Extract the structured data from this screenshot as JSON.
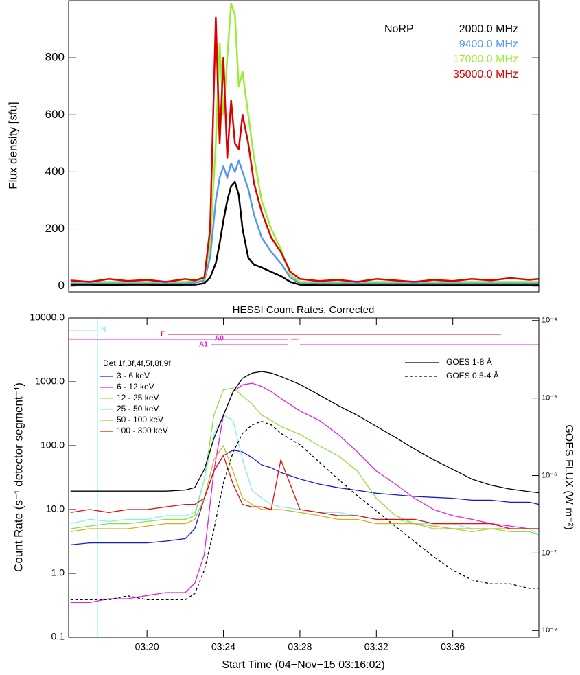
{
  "chart_data": [
    {
      "type": "line",
      "ylabel": "Flux density [sfu]",
      "legend_title": "NoRP",
      "x": [
        16,
        17,
        18,
        19,
        20,
        21,
        22,
        22.5,
        23,
        23.3,
        23.6,
        23.8,
        24.0,
        24.2,
        24.4,
        24.6,
        24.8,
        25.0,
        25.3,
        25.6,
        26.0,
        26.5,
        27,
        27.5,
        28,
        29,
        30,
        31,
        32,
        33,
        34,
        35,
        36,
        37,
        38,
        39,
        40,
        40.5
      ],
      "series": [
        {
          "name": "2000.0 MHz",
          "color": "#000000",
          "values": [
            5,
            5,
            4,
            5,
            5,
            4,
            5,
            5,
            10,
            30,
            80,
            150,
            230,
            300,
            350,
            365,
            320,
            200,
            100,
            75,
            65,
            50,
            35,
            15,
            5,
            3,
            3,
            3,
            3,
            3,
            3,
            3,
            3,
            3,
            3,
            3,
            3,
            3
          ]
        },
        {
          "name": "9400.0 MHz",
          "color": "#5599ee",
          "values": [
            10,
            10,
            10,
            10,
            10,
            10,
            10,
            12,
            20,
            100,
            300,
            380,
            420,
            380,
            430,
            400,
            440,
            400,
            340,
            250,
            170,
            120,
            80,
            30,
            10,
            10,
            10,
            10,
            10,
            10,
            10,
            10,
            10,
            10,
            10,
            10,
            10,
            10
          ]
        },
        {
          "name": "17000.0 MHz",
          "color": "#99ee33",
          "values": [
            15,
            15,
            15,
            15,
            15,
            15,
            15,
            18,
            25,
            150,
            500,
            850,
            600,
            800,
            990,
            950,
            700,
            750,
            600,
            450,
            300,
            200,
            130,
            40,
            15,
            15,
            15,
            15,
            15,
            15,
            15,
            15,
            15,
            15,
            15,
            15,
            15,
            15
          ]
        },
        {
          "name": "35000.0 MHz",
          "color": "#dd0000",
          "values": [
            20,
            15,
            25,
            18,
            22,
            15,
            25,
            20,
            30,
            200,
            940,
            500,
            800,
            450,
            650,
            500,
            480,
            600,
            500,
            360,
            260,
            170,
            120,
            50,
            25,
            18,
            22,
            15,
            25,
            20,
            15,
            22,
            18,
            25,
            20,
            28,
            22,
            25
          ]
        }
      ],
      "xlim": [
        15.9,
        40.5
      ],
      "ylim": [
        -20,
        1000
      ],
      "yticks": [
        0,
        200,
        400,
        600,
        800
      ]
    },
    {
      "type": "line",
      "title": "HESSI Count Rates, Corrected",
      "xlabel": "Start Time (04−Nov−15 03:16:02)",
      "ylabel": "Count Rate (s⁻¹ detector segment⁻¹)",
      "y2label": "GOES FLUX (W m⁻²)",
      "legend_title": "Det 1f,3f,4f,5f,8f,9f",
      "annotations": [
        "N",
        "F",
        "A0",
        "A1"
      ],
      "ylog": true,
      "y2log": true,
      "x": [
        16,
        17,
        18,
        19,
        20,
        21,
        22,
        22.5,
        23,
        23.5,
        24,
        24.5,
        25,
        25.5,
        26,
        26.5,
        27,
        28,
        29,
        30,
        31,
        32,
        33,
        34,
        35,
        36,
        37,
        38,
        39,
        40,
        40.5
      ],
      "series": [
        {
          "name": "3 - 6 keV",
          "color": "#1a1acc",
          "values": [
            2.8,
            3,
            3,
            3,
            3,
            3.2,
            3.5,
            5,
            15,
            40,
            70,
            85,
            80,
            65,
            50,
            45,
            38,
            30,
            25,
            22,
            20,
            18,
            17,
            16,
            15.5,
            15,
            14,
            14,
            13,
            13,
            12
          ]
        },
        {
          "name": "6 - 12 keV",
          "color": "#e020e0",
          "values": [
            0.35,
            0.35,
            0.4,
            0.4,
            0.45,
            0.5,
            0.5,
            0.7,
            2,
            40,
            300,
            700,
            900,
            950,
            850,
            700,
            550,
            350,
            250,
            150,
            80,
            40,
            25,
            15,
            10,
            8,
            7,
            6,
            5.5,
            5,
            5
          ]
        },
        {
          "name": "12 - 25 keV",
          "color": "#90e040",
          "values": [
            5,
            5.5,
            6,
            6,
            6.5,
            7,
            7,
            8,
            30,
            300,
            750,
            800,
            600,
            450,
            300,
            250,
            200,
            150,
            100,
            70,
            40,
            15,
            8,
            6,
            5,
            5,
            4.5,
            5,
            4.5,
            4.5,
            4
          ]
        },
        {
          "name": "25 - 50 keV",
          "color": "#80f0f0",
          "values": [
            6,
            7,
            6.5,
            7,
            7,
            8,
            8,
            9,
            30,
            150,
            300,
            250,
            60,
            20,
            15,
            12,
            11,
            10,
            9,
            9,
            8,
            7,
            7,
            6,
            6,
            6,
            5,
            5,
            5,
            5,
            4
          ]
        },
        {
          "name": "50 - 100 keV",
          "color": "#d4b020",
          "values": [
            4.5,
            5,
            5,
            5,
            5.5,
            6,
            6,
            7,
            15,
            60,
            100,
            40,
            15,
            12,
            10,
            10,
            10,
            9,
            8,
            7,
            7,
            6,
            6,
            6,
            5.5,
            5,
            5,
            5,
            5,
            5,
            5
          ]
        },
        {
          "name": "100 - 300 keV",
          "color": "#e01010",
          "values": [
            9,
            10,
            9,
            10,
            10,
            11,
            12,
            12,
            15,
            40,
            70,
            25,
            12,
            11,
            11,
            10,
            60,
            10,
            9,
            8,
            8,
            7,
            7,
            7,
            6,
            6,
            6,
            6,
            5,
            5,
            5
          ]
        },
        {
          "name": "GOES 1-8 Å",
          "color": "#000000",
          "axis": "y2",
          "dash": false,
          "values": [
            6.3e-07,
            6.3e-07,
            6.3e-07,
            6.3e-07,
            6.3e-07,
            6.3e-07,
            6.5e-07,
            7e-07,
            1.2e-06,
            3e-06,
            6e-06,
            1.2e-05,
            1.8e-05,
            2.1e-05,
            2.2e-05,
            2.1e-05,
            1.9e-05,
            1.5e-05,
            1.1e-05,
            8e-06,
            6e-06,
            4.3e-06,
            3.1e-06,
            2.2e-06,
            1.6e-06,
            1.2e-06,
            9e-07,
            7.5e-07,
            6.7e-07,
            6.2e-07,
            6e-07
          ]
        },
        {
          "name": "GOES 0.5-4 Å",
          "color": "#000000",
          "axis": "y2",
          "dash": true,
          "values": [
            2.5e-08,
            2.5e-08,
            2.5e-08,
            2.8e-08,
            2.5e-08,
            2.5e-08,
            2.5e-08,
            3e-08,
            6e-08,
            2e-07,
            8e-07,
            2e-06,
            3.5e-06,
            4.5e-06,
            5e-06,
            4.5e-06,
            3.5e-06,
            2.5e-06,
            1.5e-06,
            9e-07,
            5.5e-07,
            3.5e-07,
            2.2e-07,
            1.4e-07,
            9e-08,
            6e-08,
            4.5e-08,
            4e-08,
            4e-08,
            3.5e-08,
            3.5e-08
          ]
        }
      ],
      "xlim": [
        15.9,
        40.5
      ],
      "xticks": [
        {
          "value": 20,
          "label": "03:20"
        },
        {
          "value": 24,
          "label": "03:24"
        },
        {
          "value": 28,
          "label": "03:28"
        },
        {
          "value": 32,
          "label": "03:32"
        },
        {
          "value": 36,
          "label": "03:36"
        }
      ],
      "ylim": [
        0.1,
        10000
      ],
      "yticks": [
        0.1,
        {
          "value": 1,
          "label": "1.0"
        },
        {
          "value": 10,
          "label": "10.0"
        },
        {
          "value": 100,
          "label": "100.0"
        },
        {
          "value": 1000,
          "label": "1000.0"
        },
        {
          "value": 10000,
          "label": "10000.0"
        }
      ],
      "y2lim": [
        8.2e-09,
        0.000108
      ],
      "y2ticks": [
        {
          "value": 1e-08,
          "label": "10⁻⁸"
        },
        {
          "value": 1e-07,
          "label": "10⁻⁷"
        },
        {
          "value": 1e-06,
          "label": "10⁻⁶"
        },
        {
          "value": 1e-05,
          "label": "10⁻⁵"
        },
        {
          "value": 0.0001,
          "label": "10⁻⁴"
        }
      ]
    }
  ]
}
